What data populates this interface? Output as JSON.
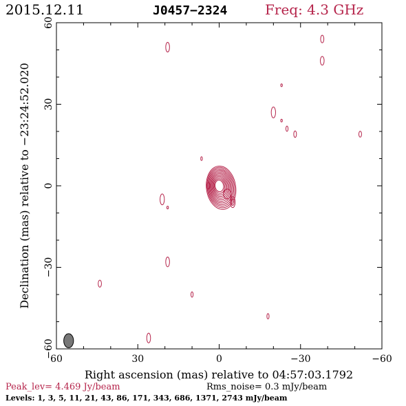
{
  "header": {
    "date": "2015.12.11",
    "source": "J0457−2324",
    "frequency": "Freq: 4.3 GHz"
  },
  "footer": {
    "peak": "Peak_lev=  4.469 Jy/beam",
    "rms": "Rms_noise=  0.3 mJy/beam",
    "levels": "Levels:   1,   3,   5,  11,  21,  43,  86, 171, 343, 686, 1371, 2743 mJy/beam"
  },
  "colors": {
    "contour": "#b5234a",
    "beam": "#777777"
  },
  "chart_data": {
    "type": "contour",
    "xlabel": "Right ascension (mas) relative to 04:57:03.1792",
    "ylabel": "Declination (mas) relative to −23:24:52.020",
    "xlim": [
      60,
      -60
    ],
    "ylim": [
      -60,
      60
    ],
    "x_ticks": [
      60,
      30,
      0,
      -30,
      -60
    ],
    "y_ticks": [
      -60,
      -30,
      0,
      30,
      60
    ],
    "x_tick_labels": [
      "60",
      "30",
      "0",
      "−30",
      "−60"
    ],
    "y_tick_labels": [
      "−60",
      "−30",
      "0",
      "30",
      "60"
    ],
    "levels_mJy": [
      1,
      3,
      5,
      11,
      21,
      43,
      86,
      171,
      343,
      686,
      1371,
      2743
    ],
    "peak_Jy_per_beam": 4.469,
    "rms_mJy_per_beam": 0.3,
    "core": {
      "x": 0,
      "y": 0
    },
    "beam": {
      "x": 55.5,
      "y": -57,
      "major": 2.6,
      "minor": 1.8
    },
    "noise_features": [
      {
        "x": 19,
        "y": 51,
        "a": 0.7,
        "b": 1.8
      },
      {
        "x": -38,
        "y": 54,
        "a": 0.6,
        "b": 1.4
      },
      {
        "x": -38,
        "y": 46,
        "a": 0.7,
        "b": 1.6
      },
      {
        "x": -23,
        "y": 37,
        "a": 0.3,
        "b": 0.5
      },
      {
        "x": -20,
        "y": 27,
        "a": 0.8,
        "b": 2.0
      },
      {
        "x": -23,
        "y": 24,
        "a": 0.3,
        "b": 0.5
      },
      {
        "x": -25,
        "y": 21,
        "a": 0.4,
        "b": 1.0
      },
      {
        "x": -28,
        "y": 19,
        "a": 0.5,
        "b": 1.2
      },
      {
        "x": -52,
        "y": 19,
        "a": 0.5,
        "b": 1.1
      },
      {
        "x": 6.5,
        "y": 10,
        "a": 0.3,
        "b": 0.7
      },
      {
        "x": 21,
        "y": -5,
        "a": 0.8,
        "b": 2.0
      },
      {
        "x": 19,
        "y": -8,
        "a": 0.3,
        "b": 0.5
      },
      {
        "x": 19,
        "y": -28,
        "a": 0.7,
        "b": 1.8
      },
      {
        "x": 44,
        "y": -36,
        "a": 0.6,
        "b": 1.3
      },
      {
        "x": 10,
        "y": -40,
        "a": 0.4,
        "b": 1.0
      },
      {
        "x": -18,
        "y": -48,
        "a": 0.4,
        "b": 1.0
      },
      {
        "x": 26,
        "y": -56,
        "a": 0.7,
        "b": 1.8
      }
    ]
  }
}
